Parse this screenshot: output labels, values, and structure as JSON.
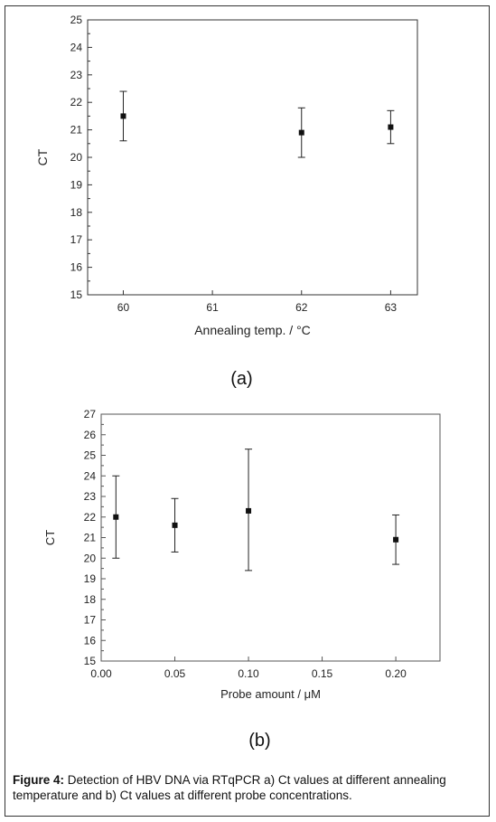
{
  "caption": {
    "label": "Figure 4:",
    "text": "Detection of HBV DNA via RTqPCR a) Ct values at different annealing temperature and b) Ct values at different probe concentrations."
  },
  "chart_data": [
    {
      "type": "scatter",
      "panel_label": "(a)",
      "ylabel": "CT",
      "xlabel": "Annealing temp. / °C",
      "xlim": [
        59.6,
        63.3
      ],
      "ylim": [
        15,
        25
      ],
      "x_ticks": [
        "60",
        "61",
        "62",
        "63"
      ],
      "y_ticks": [
        "15",
        "16",
        "17",
        "18",
        "19",
        "20",
        "21",
        "22",
        "23",
        "24",
        "25"
      ],
      "points": [
        {
          "x": 60,
          "y": 21.5,
          "err_low": 20.6,
          "err_high": 22.4
        },
        {
          "x": 62,
          "y": 20.9,
          "err_low": 20.0,
          "err_high": 21.8
        },
        {
          "x": 63,
          "y": 21.1,
          "err_low": 20.5,
          "err_high": 21.7
        }
      ]
    },
    {
      "type": "scatter",
      "panel_label": "(b)",
      "ylabel": "CT",
      "xlabel": "Probe amount / μM",
      "xlim": [
        0.0,
        0.23
      ],
      "ylim": [
        15,
        27
      ],
      "x_ticks": [
        "0.00",
        "0.05",
        "0.10",
        "0.15",
        "0.20"
      ],
      "y_ticks": [
        "15",
        "16",
        "17",
        "18",
        "19",
        "20",
        "21",
        "22",
        "23",
        "24",
        "25",
        "26",
        "27"
      ],
      "points": [
        {
          "x": 0.01,
          "y": 22.0,
          "err_low": 20.0,
          "err_high": 24.0
        },
        {
          "x": 0.05,
          "y": 21.6,
          "err_low": 20.3,
          "err_high": 22.9
        },
        {
          "x": 0.1,
          "y": 22.3,
          "err_low": 19.4,
          "err_high": 25.3
        },
        {
          "x": 0.2,
          "y": 20.9,
          "err_low": 19.7,
          "err_high": 22.1
        }
      ]
    }
  ]
}
